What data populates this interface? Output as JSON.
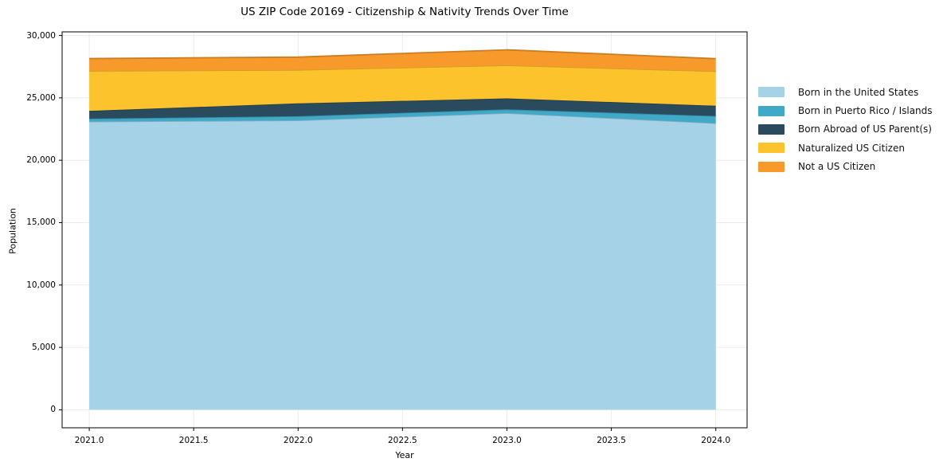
{
  "chart": {
    "title": "US ZIP Code 20169 - Citizenship & Nativity Trends Over Time",
    "xlabel": "Year",
    "ylabel": "Population"
  },
  "chart_data": {
    "type": "area",
    "stacked": true,
    "title": "US ZIP Code 20169 - Citizenship & Nativity Trends Over Time",
    "xlabel": "Year",
    "ylabel": "Population",
    "x": [
      2021,
      2022,
      2023,
      2024
    ],
    "series": [
      {
        "name": "Born in the United States",
        "color": "#a6d2e7",
        "values": [
          23100,
          23200,
          23780,
          22970
        ]
      },
      {
        "name": "Born in Puerto Rico / Islands",
        "color": "#3fa9c7",
        "values": [
          240,
          330,
          300,
          580
        ]
      },
      {
        "name": "Born Abroad of US Parent(s)",
        "color": "#2a4a5e",
        "values": [
          620,
          1030,
          880,
          820
        ]
      },
      {
        "name": "Naturalized US Citizen",
        "color": "#fcc32d",
        "values": [
          3200,
          2680,
          2650,
          2760
        ]
      },
      {
        "name": "Not a US Citizen",
        "color": "#f8992b",
        "values": [
          990,
          1030,
          1240,
          1010
        ]
      }
    ],
    "stack_totals": [
      28150,
      28270,
      28850,
      28140
    ],
    "xticks": {
      "values": [
        2021.0,
        2021.5,
        2022.0,
        2022.5,
        2023.0,
        2023.5,
        2024.0
      ],
      "labels": [
        "2021.0",
        "2021.5",
        "2022.0",
        "2022.5",
        "2023.0",
        "2023.5",
        "2024.0"
      ]
    },
    "yticks": {
      "values": [
        0,
        5000,
        10000,
        15000,
        20000,
        25000,
        30000
      ],
      "labels": [
        "0",
        "5,000",
        "10,000",
        "15,000",
        "20,000",
        "25,000",
        "30,000"
      ]
    },
    "xlim": [
      2020.87,
      2024.15
    ],
    "ylim": [
      -1442,
      30292
    ],
    "grid": true,
    "grid_color": "#ebebeb",
    "frame_color": "#000000",
    "legend_position": "right"
  }
}
